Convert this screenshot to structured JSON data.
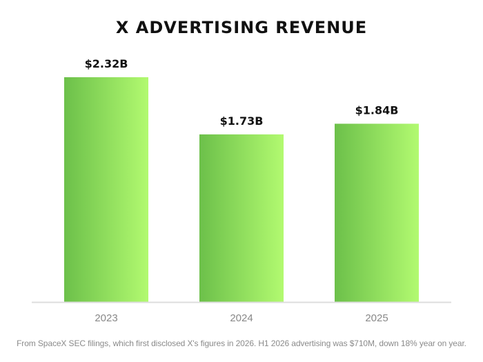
{
  "chart_data": {
    "type": "bar",
    "title": "X ADVERTISING REVENUE",
    "categories": [
      "2023",
      "2024",
      "2025"
    ],
    "values": [
      2.32,
      1.73,
      1.84
    ],
    "data_labels": [
      "$2.32B",
      "$1.73B",
      "$1.84B"
    ],
    "ylim": [
      0,
      2.32
    ],
    "grid": false,
    "colors": {
      "bar_gradient_start": "#6cc04a",
      "bar_gradient_end": "#b2fa70",
      "baseline": "#dddddd",
      "label": "#111111",
      "tick": "#888888"
    }
  },
  "footnote": "From SpaceX SEC filings, which first disclosed X's figures in 2026. H1 2026 advertising was $710M, down 18% year on year."
}
